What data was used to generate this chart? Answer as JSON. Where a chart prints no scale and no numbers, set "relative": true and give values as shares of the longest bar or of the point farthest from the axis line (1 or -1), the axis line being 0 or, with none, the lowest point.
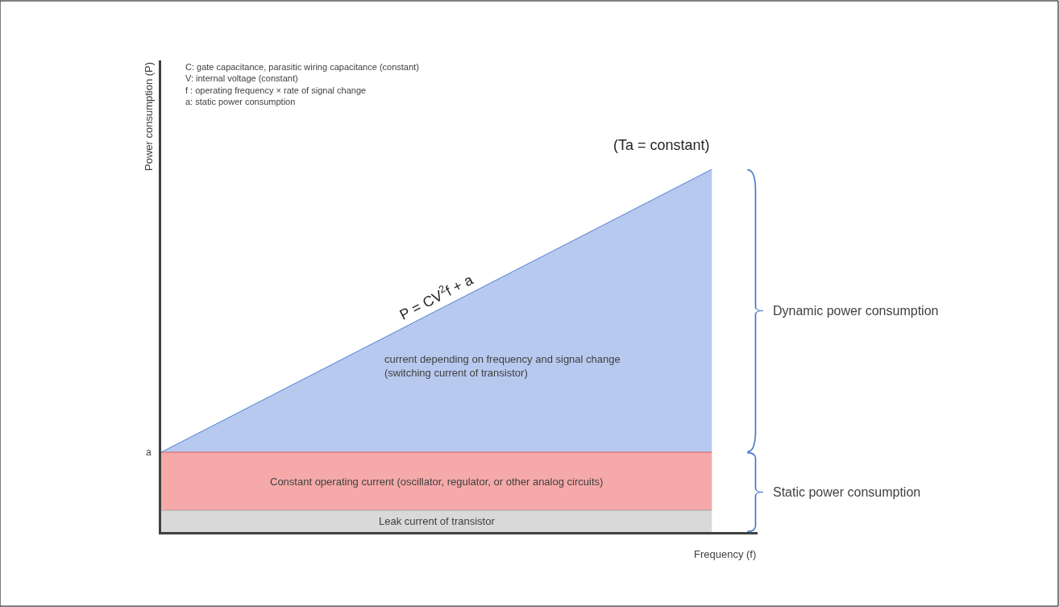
{
  "chart_data": {
    "type": "area",
    "relative": true,
    "xlabel": "Frequency (f)",
    "ylabel": "Power consumption (P)",
    "categories": [
      null,
      null
    ],
    "series": [
      {
        "name": "Leak current of transistor",
        "color": "#d9d9d9",
        "values": [
          0.06,
          0.06
        ]
      },
      {
        "name": "Constant operating current (oscillator, regulator, or other analog circuits)",
        "color": "#f6a9a9",
        "values": [
          0.22,
          0.22
        ]
      },
      {
        "name": "current depending on frequency and signal change\n(switching current of transistor)",
        "color": "#b7c9ef",
        "values": [
          0.22,
          1
        ]
      }
    ],
    "annotations": [
      "C: gate capacitance, parasitic wiring capacitance (constant)\nV: internal voltage (constant)\nf : operating frequency × rate of signal change\na: static power consumption",
      "(Ta = constant)",
      "P = CV$^{2}$f + a",
      "a",
      "Dynamic power consumption",
      "Static power consumption"
    ],
    "legend": false
  }
}
